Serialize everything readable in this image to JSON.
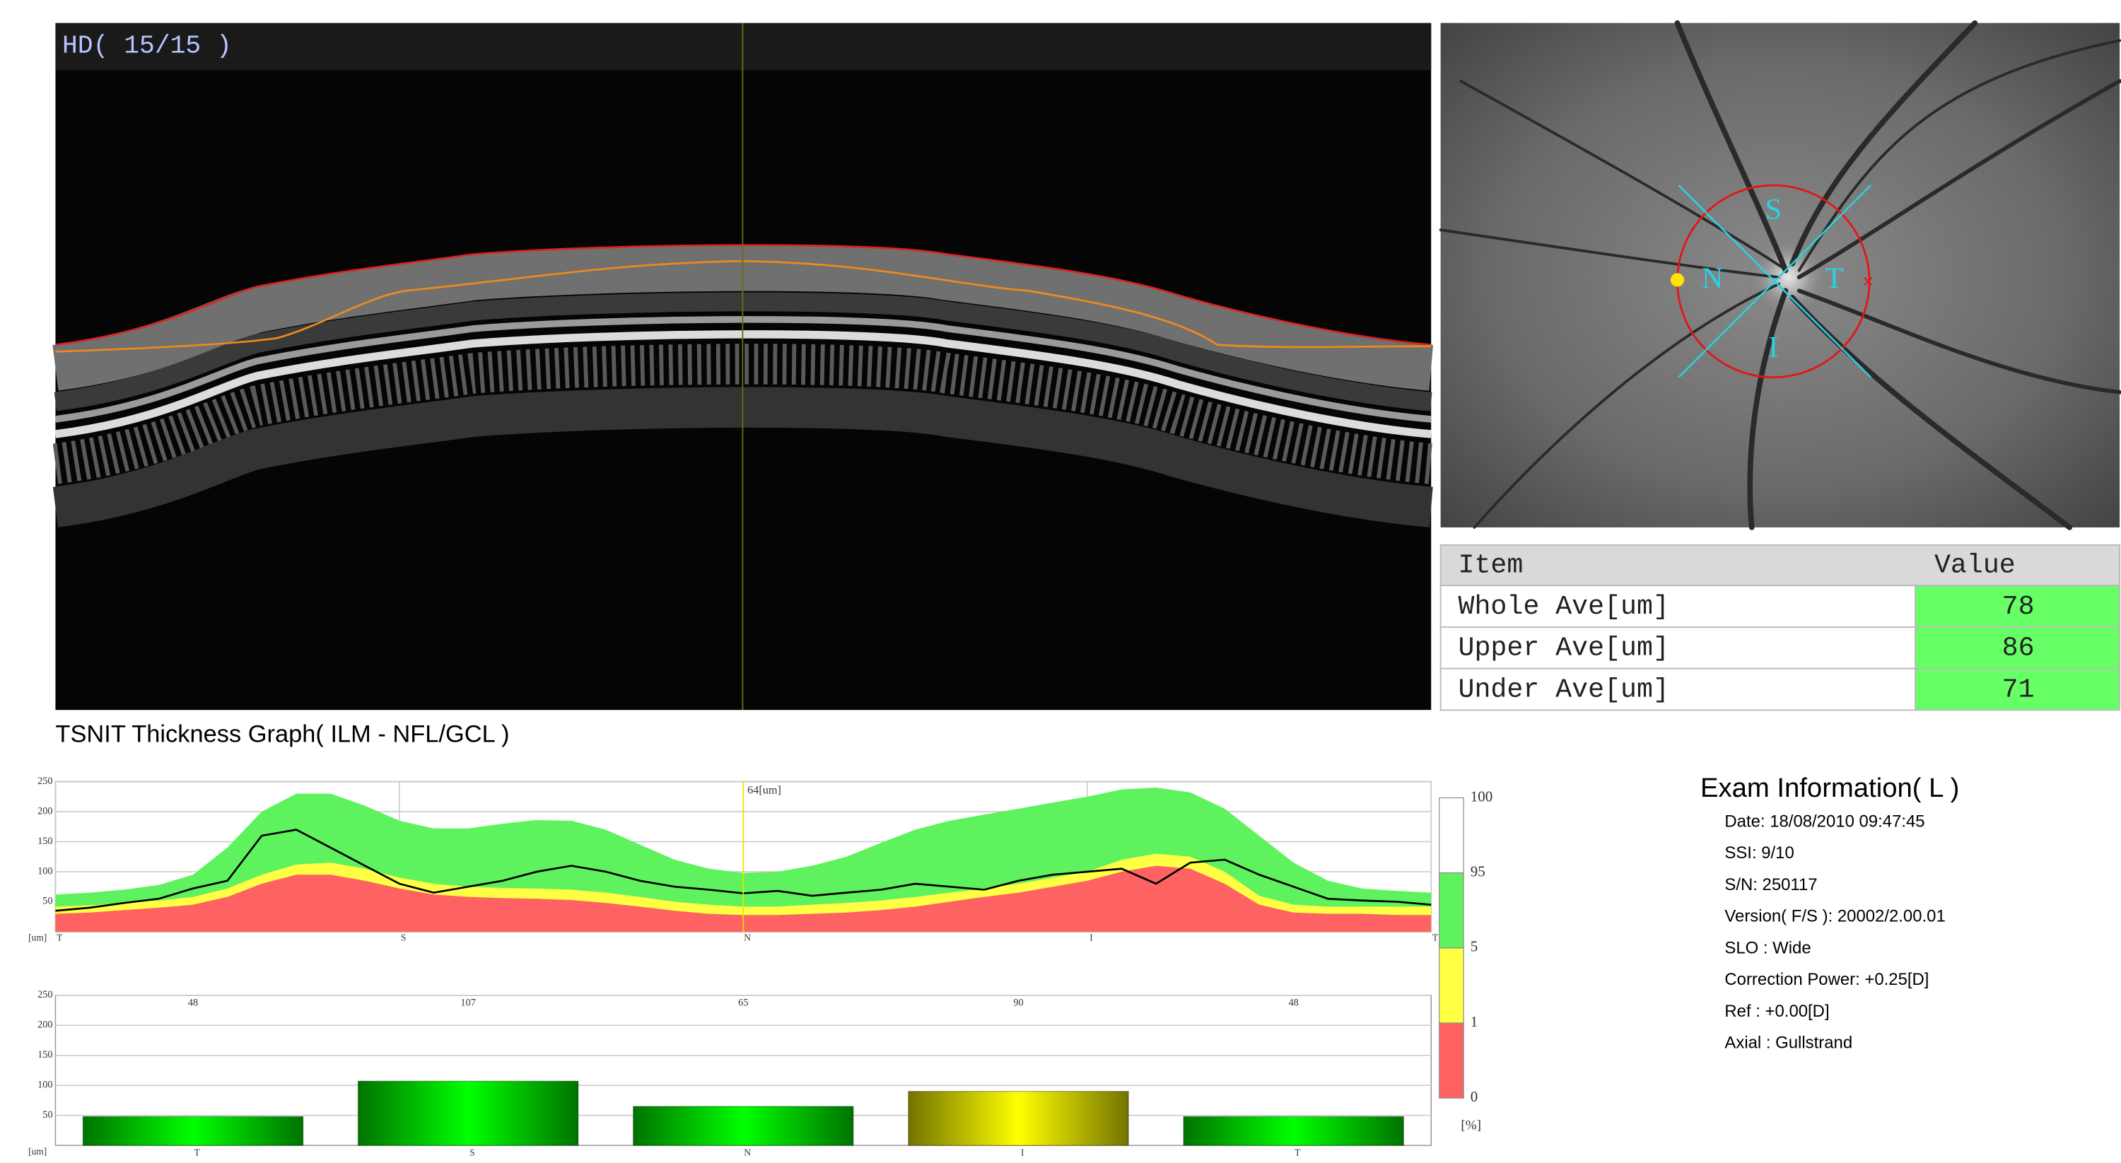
{
  "oct_scan": {
    "label": "HD( 15/15 )"
  },
  "fundus": {
    "labels": [
      "S",
      "N",
      "T",
      "I"
    ]
  },
  "table": {
    "header": [
      "Item",
      "Value"
    ],
    "rows": [
      [
        "Whole Ave[um]",
        "78"
      ],
      [
        "Upper Ave[um]",
        "86"
      ],
      [
        "Under Ave[um]",
        "71"
      ]
    ]
  },
  "exam_info": {
    "title": "Exam Information( L )",
    "lines": [
      "Date: 18/08/2010 09:47:45",
      "SSI:  9/10",
      "S/N: 250117",
      "Version( F/S ): 20002/2.00.01",
      "SLO : Wide",
      "Correction Power: +0.25[D]",
      "Ref : +0.00[D]",
      "Axial : Gullstrand"
    ]
  },
  "chart_data": [
    {
      "type": "area_line",
      "title": "TSNIT Thickness Graph( ILM - NFL/GCL )",
      "y_unit": "[um]",
      "ylim": [
        0,
        250
      ],
      "yticks": [
        50,
        100,
        150,
        200,
        250
      ],
      "xlim": [
        0,
        40
      ],
      "xticks": [
        {
          "value": 0,
          "label": "T"
        },
        {
          "value": 10,
          "label": "S"
        },
        {
          "value": 20,
          "label": "N"
        },
        {
          "value": 30,
          "label": "I"
        },
        {
          "value": 40,
          "label": "T"
        }
      ],
      "grid": true,
      "series": [
        {
          "color": "#5ef25e",
          "values": [
            62,
            65,
            70,
            78,
            95,
            140,
            200,
            230,
            230,
            210,
            185,
            172,
            172,
            180,
            186,
            185,
            170,
            145,
            120,
            105,
            98,
            100,
            110,
            125,
            148,
            170,
            185,
            195,
            205,
            215,
            225,
            237,
            240,
            232,
            205,
            160,
            115,
            85,
            72,
            68,
            65
          ]
        },
        {
          "color": "#ffff44",
          "values": [
            42,
            44,
            48,
            52,
            58,
            72,
            95,
            112,
            115,
            105,
            90,
            80,
            75,
            73,
            72,
            70,
            65,
            58,
            50,
            45,
            42,
            42,
            45,
            48,
            52,
            58,
            65,
            72,
            80,
            90,
            100,
            120,
            130,
            125,
            100,
            60,
            45,
            42,
            42,
            42,
            42
          ]
        },
        {
          "color": "#ff6262",
          "values": [
            30,
            32,
            36,
            40,
            45,
            58,
            80,
            95,
            95,
            85,
            72,
            62,
            58,
            56,
            55,
            53,
            48,
            42,
            35,
            30,
            28,
            28,
            30,
            32,
            36,
            42,
            50,
            58,
            65,
            75,
            85,
            100,
            110,
            105,
            80,
            45,
            32,
            30,
            30,
            28,
            28
          ]
        },
        {
          "color": "#000000",
          "values": [
            35,
            40,
            48,
            55,
            72,
            85,
            160,
            170,
            140,
            110,
            80,
            65,
            75,
            85,
            100,
            110,
            100,
            85,
            75,
            70,
            64,
            68,
            60,
            65,
            70,
            80,
            75,
            70,
            85,
            95,
            100,
            105,
            80,
            115,
            120,
            95,
            75,
            55,
            52,
            50,
            45
          ]
        }
      ],
      "annotation": {
        "x": 20,
        "label": "64[um]",
        "color": "#e6e600"
      },
      "legend": {
        "levels": [
          100,
          95,
          5,
          1,
          0
        ],
        "colors": [
          "#ffffff",
          "#5ef25e",
          "#ffff44",
          "#ff6262"
        ],
        "unit": "[%]"
      }
    },
    {
      "type": "bar",
      "y_unit": "[um]",
      "ylim": [
        0,
        250
      ],
      "yticks": [
        50,
        100,
        150,
        200,
        250
      ],
      "grid": true,
      "categories": [
        "T",
        "S",
        "N",
        "I",
        "T"
      ],
      "values": [
        48,
        107,
        65,
        90,
        48
      ],
      "colors": [
        "#00ff00",
        "#00ff00",
        "#00ff00",
        "#ffff00",
        "#00ff00"
      ]
    }
  ]
}
